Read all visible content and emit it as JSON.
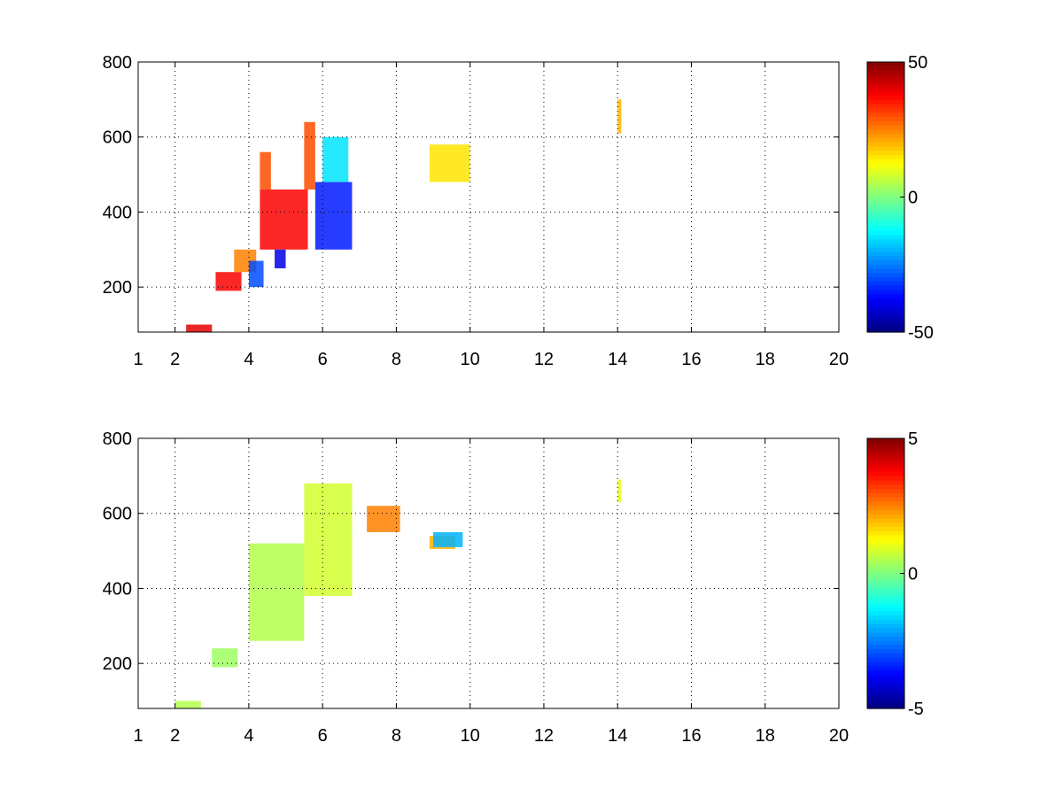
{
  "chart_data": [
    {
      "type": "heatmap",
      "title": "",
      "xlabel": "",
      "ylabel": "",
      "xlim": [
        1,
        20
      ],
      "ylim": [
        80,
        800
      ],
      "xticks": [
        1,
        2,
        4,
        6,
        8,
        10,
        12,
        14,
        16,
        18,
        20
      ],
      "xtick_labels": [
        "1",
        "2",
        "4",
        "6",
        "8",
        "10",
        "12",
        "14",
        "16",
        "18",
        "20"
      ],
      "yticks": [
        200,
        400,
        600,
        800
      ],
      "ytick_labels": [
        "200",
        "400",
        "600",
        "800"
      ],
      "grid": true,
      "colormap": "jet",
      "clim": [
        -50,
        50
      ],
      "colorbar_ticks": [
        50,
        0,
        -50
      ],
      "colorbar_labels": [
        "50",
        "0",
        "-50"
      ],
      "regions": [
        {
          "x": [
            2.3,
            3.0
          ],
          "y": [
            80,
            100
          ],
          "value": 40
        },
        {
          "x": [
            3.1,
            3.8
          ],
          "y": [
            190,
            240
          ],
          "value": 38
        },
        {
          "x": [
            3.6,
            4.2
          ],
          "y": [
            240,
            300
          ],
          "value": 25
        },
        {
          "x": [
            4.3,
            5.6
          ],
          "y": [
            300,
            460
          ],
          "value": 38
        },
        {
          "x": [
            4.3,
            4.6
          ],
          "y": [
            460,
            560
          ],
          "value": 30
        },
        {
          "x": [
            5.5,
            5.8
          ],
          "y": [
            460,
            640
          ],
          "value": 30
        },
        {
          "x": [
            4.0,
            4.4
          ],
          "y": [
            200,
            270
          ],
          "value": -30
        },
        {
          "x": [
            4.7,
            5.0
          ],
          "y": [
            250,
            300
          ],
          "value": -40
        },
        {
          "x": [
            5.8,
            6.8
          ],
          "y": [
            300,
            480
          ],
          "value": -35
        },
        {
          "x": [
            6.0,
            6.7
          ],
          "y": [
            480,
            600
          ],
          "value": -15
        },
        {
          "x": [
            8.9,
            10.0
          ],
          "y": [
            480,
            580
          ],
          "value": 15
        },
        {
          "x": [
            14.0,
            14.1
          ],
          "y": [
            610,
            700
          ],
          "value": 20
        }
      ]
    },
    {
      "type": "heatmap",
      "title": "",
      "xlabel": "",
      "ylabel": "",
      "xlim": [
        1,
        20
      ],
      "ylim": [
        80,
        800
      ],
      "xticks": [
        1,
        2,
        4,
        6,
        8,
        10,
        12,
        14,
        16,
        18,
        20
      ],
      "xtick_labels": [
        "1",
        "2",
        "4",
        "6",
        "8",
        "10",
        "12",
        "14",
        "16",
        "18",
        "20"
      ],
      "yticks": [
        200,
        400,
        600,
        800
      ],
      "ytick_labels": [
        "200",
        "400",
        "600",
        "800"
      ],
      "grid": true,
      "colormap": "jet",
      "clim": [
        -5,
        5
      ],
      "colorbar_ticks": [
        5,
        0,
        -5
      ],
      "colorbar_labels": [
        "5",
        "0",
        "-5"
      ],
      "regions": [
        {
          "x": [
            2.0,
            2.7
          ],
          "y": [
            80,
            100
          ],
          "value": 0.5
        },
        {
          "x": [
            3.0,
            3.7
          ],
          "y": [
            190,
            240
          ],
          "value": 0.3
        },
        {
          "x": [
            4.0,
            5.5
          ],
          "y": [
            260,
            520
          ],
          "value": 0.5
        },
        {
          "x": [
            5.5,
            6.8
          ],
          "y": [
            380,
            680
          ],
          "value": 0.8
        },
        {
          "x": [
            7.2,
            8.1
          ],
          "y": [
            550,
            620
          ],
          "value": 2.5
        },
        {
          "x": [
            8.9,
            9.6
          ],
          "y": [
            505,
            540
          ],
          "value": 2.0
        },
        {
          "x": [
            9.0,
            9.8
          ],
          "y": [
            510,
            550
          ],
          "value": -2.0
        },
        {
          "x": [
            14.0,
            14.1
          ],
          "y": [
            630,
            690
          ],
          "value": 1.0
        }
      ]
    }
  ]
}
